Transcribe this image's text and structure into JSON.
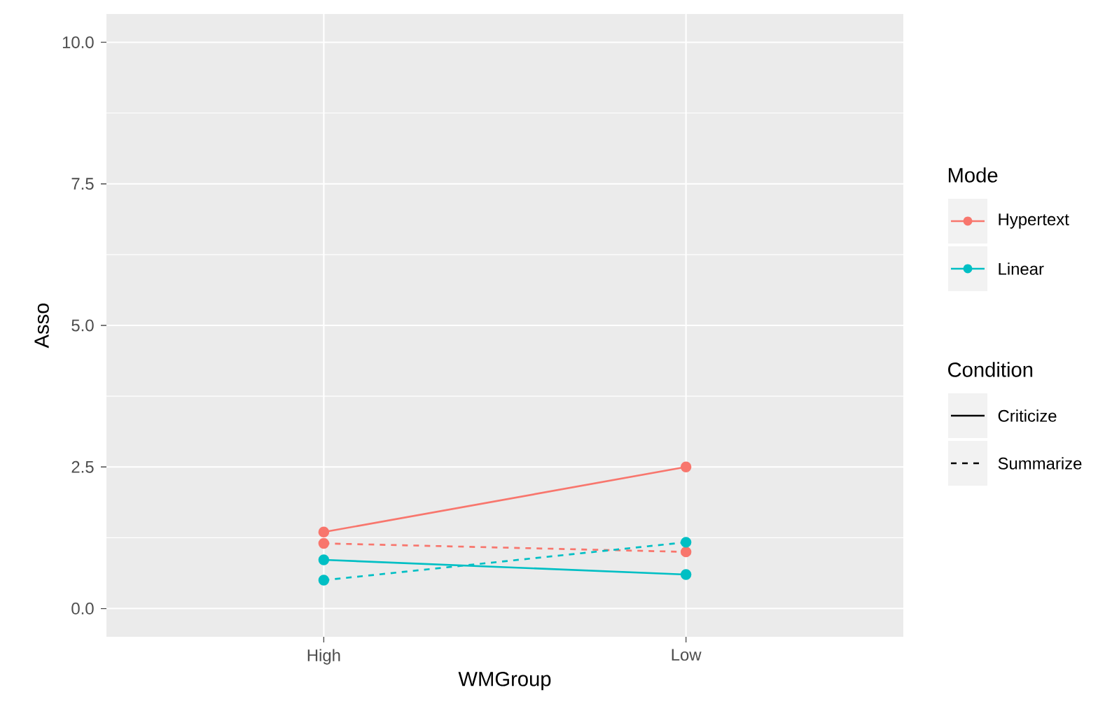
{
  "chart_data": {
    "type": "line",
    "xlabel": "WMGroup",
    "ylabel": "Asso",
    "categories": [
      "High",
      "Low"
    ],
    "series": [
      {
        "name": "Hypertext",
        "color": "#f8766d",
        "line_style": "solid",
        "values": [
          1.35,
          2.5
        ]
      },
      {
        "color": "#f8766d",
        "line_style": "dashed",
        "values": [
          1.15,
          1.0
        ]
      },
      {
        "name": "Linear",
        "color": "#00bfc4",
        "line_style": "solid",
        "values": [
          0.86,
          0.6
        ]
      },
      {
        "color": "#00bfc4",
        "line_style": "dashed",
        "values": [
          0.5,
          1.17
        ]
      },
      {
        "name": "Criticize",
        "color": "#000000",
        "line_style": "solid",
        "values": [
          null,
          null
        ]
      },
      {
        "name": "Summarize",
        "color": "#000000",
        "line_style": "dashed",
        "values": [
          null,
          null
        ]
      }
    ],
    "legend_title": [
      "Mode",
      "Condition"
    ],
    "ylim": [
      -0.5,
      10.5
    ],
    "yticks": [
      {
        "value": 0,
        "label": "0.0"
      },
      {
        "value": 2.5,
        "label": "2.5"
      },
      {
        "value": 5,
        "label": "5.0"
      },
      {
        "value": 7.5,
        "label": "7.5"
      },
      {
        "value": 10,
        "label": "10.0"
      }
    ],
    "grid": true,
    "marker": "circle",
    "legend": "right"
  }
}
